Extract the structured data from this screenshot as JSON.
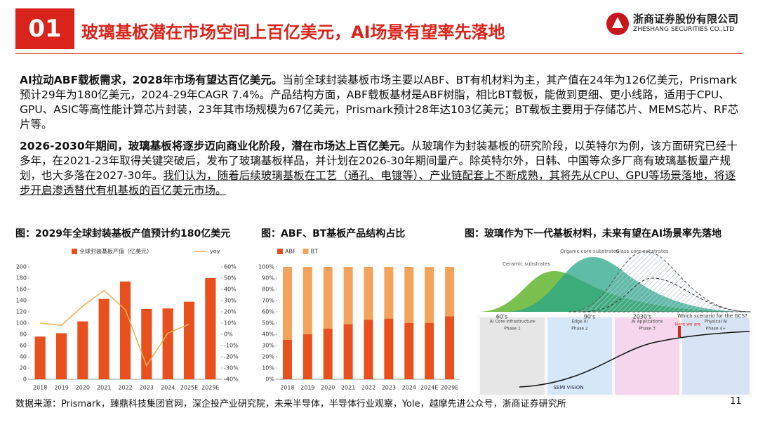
{
  "header": {
    "number": "01",
    "title": "玻璃基板潜在市场空间上百亿美元，AI场景有望率先落地",
    "logo_name": "浙商证券股份有限公司",
    "logo_en": "ZHESHANG SECURITIES CO.,LTD"
  },
  "paragraphs": [
    {
      "bold": "AI拉动ABF载板需求，2028年市场有望达百亿美元。",
      "text": "当前全球封装基板市场主要以ABF、BT有机材料为主，其产值在24年为126亿美元，Prismark预计29年为180亿美元，2024-29年CAGR 7.4%。产品结构方面，ABF载板基材是ABF树脂，相比BT载板，能做到更细、更小线路，适用于CPU、GPU、ASIC等高性能计算芯片封装，23年其市场规模为67亿美元，Prismark预计28年达103亿美元；BT载板主要用于存储芯片、MEMS芯片、RF芯片等。"
    },
    {
      "bold": "2026-2030年期间，玻璃基板将逐步迈向商业化阶段，潜在市场达上百亿美元。",
      "text": "从玻璃作为封装基板的研究阶段，以英特尔为例，该方面研究已经十多年，在2021-23年取得关键突破后，发布了玻璃基板样品，并计划在2026-30年期间量产。除英特尔外，日韩、中国等众多厂商有玻璃基板量产规划，也大多落在2027-30年。",
      "underline": "我们认为，随着后续玻璃基板在工艺（通孔、电镀等）、产业链配套上不断成熟，其将先从CPU、GPU等场景落地，将逐步开启渗透替代有机基板的百亿美元市场。"
    }
  ],
  "chart_data": [
    {
      "type": "bar",
      "title": "图：2029年全球封装基板产值预计约180亿美元",
      "categories": [
        "2018",
        "2019",
        "2020",
        "2021",
        "2022",
        "2023",
        "2024",
        "2025E",
        "2029E"
      ],
      "series": [
        {
          "name": "全球封装基板产值（亿美元）",
          "type": "bar",
          "color": "#e8501e",
          "values": [
            76,
            82,
            103,
            143,
            174,
            125,
            126,
            138,
            180
          ]
        },
        {
          "name": "yoy",
          "type": "line",
          "axis": "y2",
          "color": "#f0b050",
          "values": [
            10,
            8,
            25,
            39,
            22,
            -28,
            1,
            9,
            null
          ]
        }
      ],
      "ylim": [
        0,
        200
      ],
      "yticks": [
        0,
        20,
        40,
        60,
        80,
        100,
        120,
        140,
        160,
        180,
        200
      ],
      "y2lim": [
        -40,
        60
      ],
      "y2ticks": [
        {
          "value": -40,
          "label": "-40%"
        },
        {
          "value": -30,
          "label": "-30%"
        },
        {
          "value": -20,
          "label": "-20%"
        },
        {
          "value": -10,
          "label": "-10%"
        },
        {
          "value": 0,
          "label": "0%"
        },
        {
          "value": 10,
          "label": "10%"
        },
        {
          "value": 20,
          "label": "20%"
        },
        {
          "value": 30,
          "label": "30%"
        },
        {
          "value": 40,
          "label": "40%"
        },
        {
          "value": 50,
          "label": "50%"
        },
        {
          "value": 60,
          "label": "60%"
        }
      ]
    },
    {
      "type": "bar",
      "stacked": true,
      "title": "图：ABF、BT基板产品结构占比",
      "categories": [
        "2018",
        "2019",
        "2020",
        "2021",
        "2022",
        "2023",
        "2024",
        "2024E",
        "2029E"
      ],
      "series": [
        {
          "name": "ABF",
          "type": "bar",
          "color": "#e8501e",
          "values": [
            35,
            40,
            45,
            49,
            53,
            54,
            50,
            50,
            56
          ]
        },
        {
          "name": "BT",
          "type": "bar",
          "color": "#f4a35c",
          "values": [
            65,
            60,
            55,
            51,
            47,
            46,
            50,
            50,
            44
          ]
        }
      ],
      "ylim": [
        0,
        100
      ],
      "yticks": [
        {
          "value": 0,
          "label": "0%"
        },
        {
          "value": 10,
          "label": "10%"
        },
        {
          "value": 20,
          "label": "20%"
        },
        {
          "value": 30,
          "label": "30%"
        },
        {
          "value": 40,
          "label": "40%"
        },
        {
          "value": 50,
          "label": "50%"
        },
        {
          "value": 60,
          "label": "60%"
        },
        {
          "value": 70,
          "label": "70%"
        },
        {
          "value": 80,
          "label": "80%"
        },
        {
          "value": 90,
          "label": "90%"
        },
        {
          "value": 100,
          "label": "100%"
        }
      ]
    }
  ],
  "image_panel": {
    "title": "图：玻璃作为下一代基板材料，未来有望在AI场景率先落地",
    "curve_labels": [
      "Ceramic substrates",
      "Organic core substrates",
      "Glass core substrates"
    ],
    "eras": [
      "60's",
      "90's",
      "2030's"
    ],
    "question": "Which scenario for the GCS?",
    "columns": [
      "AI Core Infrastructure",
      "Edge AI",
      "AI Applications",
      "Physical AI"
    ],
    "phases": [
      "Phase 1",
      "Phase 2",
      "Phase 3",
      "Phase 4+"
    ],
    "marker": "Here we are",
    "brand": "SEMI VISION"
  },
  "footer": {
    "source": "数据来源：Prismark，臻鼎科技集团官网，深企投产业研究院，未来半导体，半导体行业观察，Yole，越摩先进公众号，浙商证券研究所",
    "page": "11"
  }
}
